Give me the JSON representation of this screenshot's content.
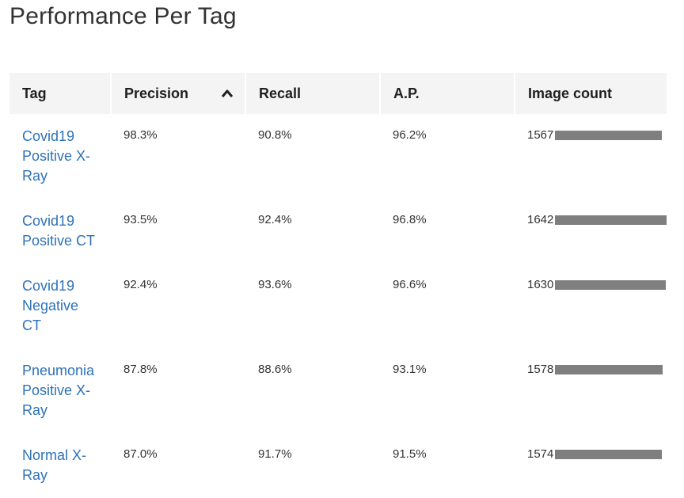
{
  "page": {
    "title": "Performance Per Tag"
  },
  "table": {
    "columns": {
      "tag": "Tag",
      "precision": "Precision",
      "recall": "Recall",
      "ap": "A.P.",
      "image_count": "Image count"
    },
    "sort": {
      "column": "precision",
      "direction": "descending",
      "icon": "chevron-up-icon"
    },
    "bar_color": "#7f7f7f",
    "link_color": "#2e72b8",
    "max_image_count": 1642,
    "rows": [
      {
        "tag": "Covid19 Positive X-Ray",
        "precision": "98.3%",
        "recall": "90.8%",
        "ap": "96.2%",
        "image_count": "1567",
        "image_count_value": 1567
      },
      {
        "tag": "Covid19 Positive CT",
        "precision": "93.5%",
        "recall": "92.4%",
        "ap": "96.8%",
        "image_count": "1642",
        "image_count_value": 1642
      },
      {
        "tag": "Covid19 Negative CT",
        "precision": "92.4%",
        "recall": "93.6%",
        "ap": "96.6%",
        "image_count": "1630",
        "image_count_value": 1630
      },
      {
        "tag": "Pneumonia Positive X-Ray",
        "precision": "87.8%",
        "recall": "88.6%",
        "ap": "93.1%",
        "image_count": "1578",
        "image_count_value": 1578
      },
      {
        "tag": "Normal X-Ray",
        "precision": "87.0%",
        "recall": "91.7%",
        "ap": "91.5%",
        "image_count": "1574",
        "image_count_value": 1574
      }
    ]
  }
}
